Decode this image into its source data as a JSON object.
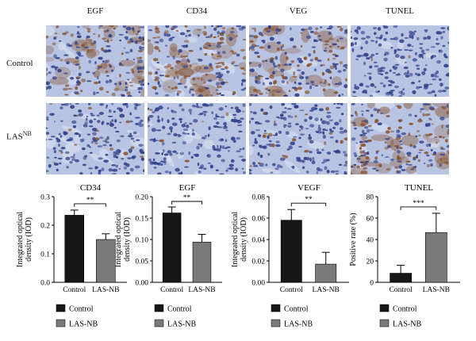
{
  "micrographs": {
    "columns": [
      "EGF",
      "CD34",
      "VEG",
      "TUNEL"
    ],
    "rows": [
      {
        "label": "Control",
        "superscript": ""
      },
      {
        "label": "LAS",
        "superscript": "NB"
      }
    ],
    "colors": {
      "background": "#b9c4e2",
      "nucleus": "#31418c",
      "brown_stain": "#8a5632"
    }
  },
  "colors": {
    "control": "#161616",
    "las_nb": "#7a7a7a"
  },
  "chart_data": [
    {
      "type": "bar",
      "title": "CD34",
      "ylabel_lines": [
        "Integrated optical",
        "density (IOD)"
      ],
      "categories": [
        "Control",
        "LAS-NB"
      ],
      "values": [
        0.235,
        0.15
      ],
      "errors": [
        0.018,
        0.02
      ],
      "ylim": [
        0,
        0.3
      ],
      "yticks": [
        0,
        0.1,
        0.2,
        0.3
      ],
      "ytick_labels": [
        "0.0",
        "0.1",
        "0.2",
        "0.3"
      ],
      "significance": "**",
      "legend": [
        "Control",
        "LAS-NB"
      ]
    },
    {
      "type": "bar",
      "title": "EGF",
      "ylabel_lines": [
        "Integrated optical",
        "density (IOD)"
      ],
      "categories": [
        "Control",
        "LAS-NB"
      ],
      "values": [
        0.162,
        0.094
      ],
      "errors": [
        0.014,
        0.018
      ],
      "ylim": [
        0,
        0.2
      ],
      "yticks": [
        0,
        0.05,
        0.1,
        0.15,
        0.2
      ],
      "ytick_labels": [
        "0.00",
        "0.05",
        "0.10",
        "0.15",
        "0.20"
      ],
      "significance": "**",
      "legend": [
        "Control",
        "LAS-NB"
      ]
    },
    {
      "type": "bar",
      "title": "VEGF",
      "ylabel_lines": [
        "Integrated optical",
        "density (IOD)"
      ],
      "categories": [
        "Control",
        "LAS-NB"
      ],
      "values": [
        0.058,
        0.017
      ],
      "errors": [
        0.01,
        0.011
      ],
      "ylim": [
        0,
        0.08
      ],
      "yticks": [
        0,
        0.02,
        0.04,
        0.06,
        0.08
      ],
      "ytick_labels": [
        "0.00",
        "0.02",
        "0.04",
        "0.06",
        "0.08"
      ],
      "significance": "**",
      "legend": [
        "Control",
        "LAS-NB"
      ]
    },
    {
      "type": "bar",
      "title": "TUNEL",
      "ylabel_lines": [
        "Positive rate (%)"
      ],
      "categories": [
        "Control",
        "LAS-NB"
      ],
      "values": [
        8.5,
        46.5
      ],
      "errors": [
        7.5,
        18
      ],
      "ylim": [
        0,
        80
      ],
      "yticks": [
        0,
        20,
        40,
        60,
        80
      ],
      "ytick_labels": [
        "0",
        "20",
        "40",
        "60",
        "80"
      ],
      "significance": "***",
      "legend": [
        "Control",
        "LAS-NB"
      ]
    }
  ]
}
